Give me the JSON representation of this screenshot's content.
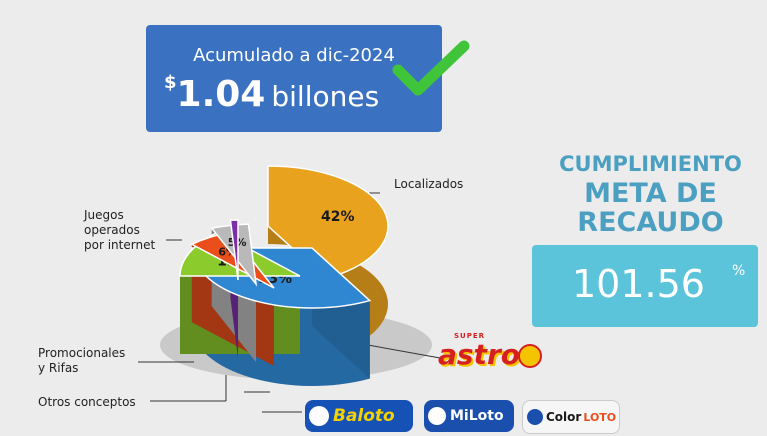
{
  "banner": {
    "line1": "Acumulado a dic-2024",
    "currency": "$",
    "amount": "1.04",
    "unit": "billones"
  },
  "meta": {
    "title1": "CUMPLIMIENTO",
    "title2": "META DE",
    "title3": "RECAUDO",
    "value": "101.56",
    "unit": "%"
  },
  "chart_data": {
    "type": "pie",
    "slices": [
      {
        "label": "Juegos operados por internet",
        "value": 42,
        "value_label": "42%",
        "color": "#e8a21e"
      },
      {
        "label": "Localizados",
        "value": 33,
        "value_label": "33%",
        "color": "#2f86d1"
      },
      {
        "label": "",
        "value": 13,
        "value_label": "13%",
        "color": "#8ccb2c"
      },
      {
        "label": "",
        "value": 6,
        "value_label": "6%",
        "color": "#e94e1b"
      },
      {
        "label": "Otros conceptos",
        "value": 5,
        "value_label": "5%",
        "color": "#b9b9b9"
      },
      {
        "label": "Promocionales y Rifas",
        "value": 1,
        "value_label": "",
        "color": "#7b2fa8"
      }
    ]
  },
  "labels": {
    "internet": [
      "Juegos",
      "operados",
      "por internet"
    ],
    "localizados": "Localizados",
    "promocionales": [
      "Promocionales",
      "y Rifas"
    ],
    "otros": "Otros conceptos"
  },
  "logos": {
    "astro_super": "SUPER",
    "astro": "astro",
    "baloto": "Baloto",
    "miloto": "MiLoto",
    "color": "Color",
    "loto": "LOTO"
  }
}
